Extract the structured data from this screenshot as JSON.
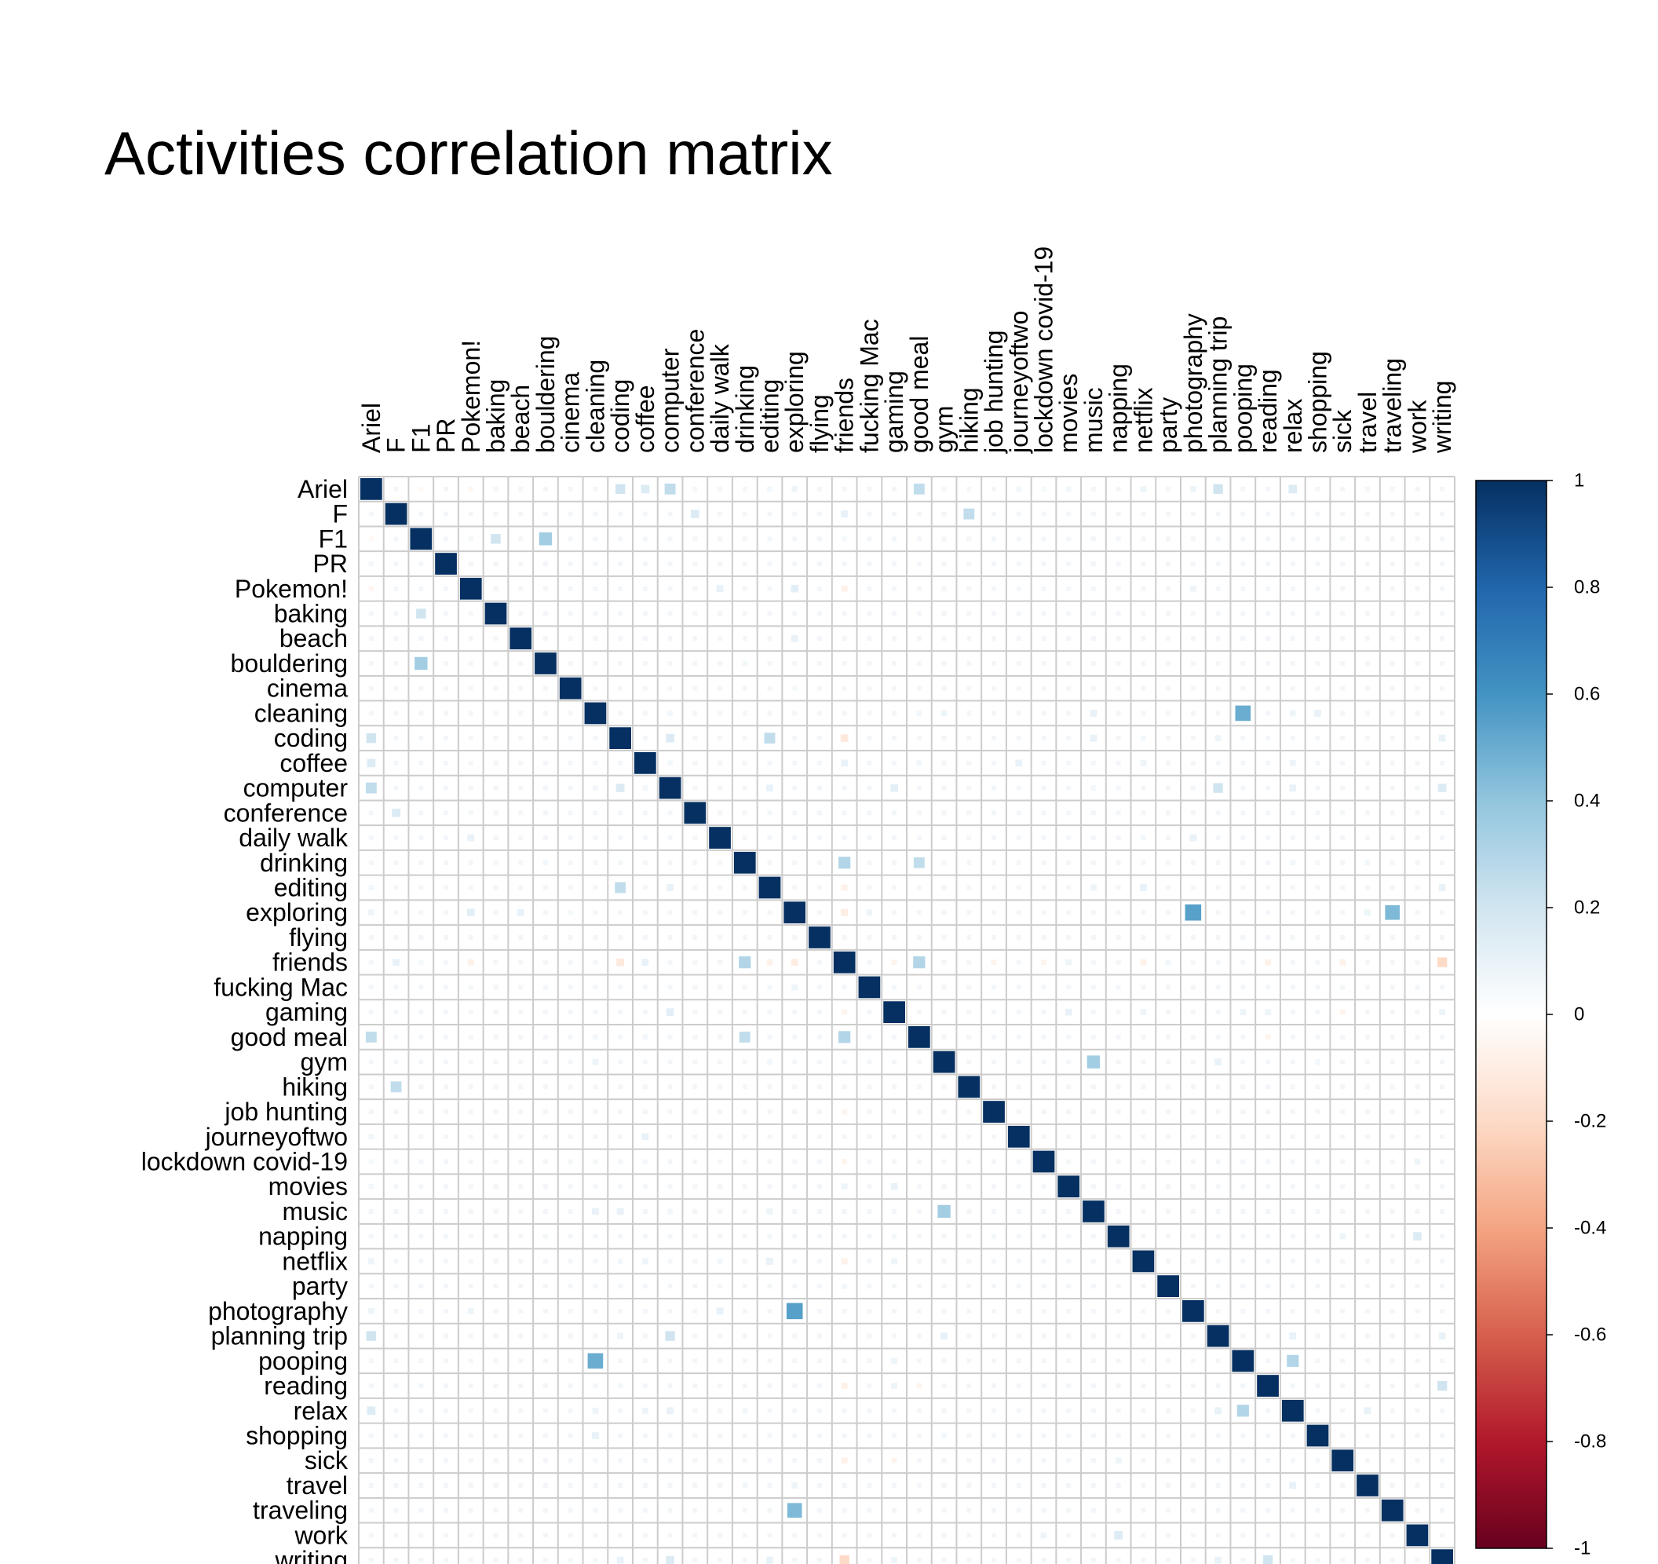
{
  "chart_data": {
    "type": "heatmap",
    "title": "Activities correlation matrix",
    "variables": [
      "Ariel",
      "F",
      "F1",
      "PR",
      "Pokemon!",
      "baking",
      "beach",
      "bouldering",
      "cinema",
      "cleaning",
      "coding",
      "coffee",
      "computer",
      "conference",
      "daily walk",
      "drinking",
      "editing",
      "exploring",
      "flying",
      "friends",
      "fucking Mac",
      "gaming",
      "good meal",
      "gym",
      "hiking",
      "job hunting",
      "journeyoftwo",
      "lockdown covid-19",
      "movies",
      "music",
      "napping",
      "netflix",
      "party",
      "photography",
      "planning trip",
      "pooping",
      "reading",
      "relax",
      "shopping",
      "sick",
      "travel",
      "traveling",
      "work",
      "writing"
    ],
    "value_range": [
      -1,
      1
    ],
    "colorbar_ticks": [
      "1",
      "0.8",
      "0.6",
      "0.4",
      "0.2",
      "0",
      "-0.2",
      "-0.4",
      "-0.6",
      "-0.8",
      "-1"
    ],
    "grid": true,
    "legend": "right",
    "colors": {
      "neg": "#67001F",
      "mid": "#FFFFFF",
      "pos": "#053061",
      "grid": "#cccccc"
    },
    "offdiag_nonzero": [
      [
        "Ariel",
        "coding",
        0.2
      ],
      [
        "Ariel",
        "coffee",
        0.15
      ],
      [
        "Ariel",
        "computer",
        0.25
      ],
      [
        "Ariel",
        "good meal",
        0.25
      ],
      [
        "Ariel",
        "planning trip",
        0.2
      ],
      [
        "Ariel",
        "relax",
        0.15
      ],
      [
        "Ariel",
        "photography",
        0.08
      ],
      [
        "Ariel",
        "netflix",
        0.08
      ],
      [
        "Ariel",
        "movies",
        0.06
      ],
      [
        "Ariel",
        "editing",
        0.06
      ],
      [
        "Ariel",
        "exploring",
        0.08
      ],
      [
        "Ariel",
        "journeyoftwo",
        0.06
      ],
      [
        "Ariel",
        "lockdown covid-19",
        0.05
      ],
      [
        "Ariel",
        "Pokemon!",
        -0.05
      ],
      [
        "Ariel",
        "F1",
        -0.04
      ],
      [
        "F",
        "conference",
        0.15
      ],
      [
        "F",
        "hiking",
        0.25
      ],
      [
        "F",
        "friends",
        0.1
      ],
      [
        "F1",
        "baking",
        0.2
      ],
      [
        "F1",
        "bouldering",
        0.35
      ],
      [
        "F1",
        "friends",
        0.05
      ],
      [
        "Pokemon!",
        "exploring",
        0.12
      ],
      [
        "Pokemon!",
        "photography",
        0.08
      ],
      [
        "Pokemon!",
        "daily walk",
        0.1
      ],
      [
        "Pokemon!",
        "friends",
        -0.08
      ],
      [
        "beach",
        "exploring",
        0.1
      ],
      [
        "bouldering",
        "drinking",
        0.06
      ],
      [
        "cinema",
        "exploring",
        0.05
      ],
      [
        "cleaning",
        "pooping",
        0.5
      ],
      [
        "cleaning",
        "music",
        0.1
      ],
      [
        "cleaning",
        "relax",
        0.08
      ],
      [
        "cleaning",
        "shopping",
        0.1
      ],
      [
        "cleaning",
        "computer",
        0.06
      ],
      [
        "cleaning",
        "gym",
        0.08
      ],
      [
        "cleaning",
        "good meal",
        0.06
      ],
      [
        "coding",
        "editing",
        0.25
      ],
      [
        "coding",
        "computer",
        0.15
      ],
      [
        "coding",
        "music",
        0.1
      ],
      [
        "coding",
        "writing",
        0.1
      ],
      [
        "coding",
        "planning trip",
        0.08
      ],
      [
        "coding",
        "friends",
        -0.12
      ],
      [
        "coding",
        "netflix",
        0.06
      ],
      [
        "coffee",
        "friends",
        0.1
      ],
      [
        "coffee",
        "relax",
        0.08
      ],
      [
        "coffee",
        "journeyoftwo",
        0.1
      ],
      [
        "coffee",
        "netflix",
        0.08
      ],
      [
        "coffee",
        "computer",
        0.06
      ],
      [
        "coffee",
        "good meal",
        0.06
      ],
      [
        "computer",
        "planning trip",
        0.2
      ],
      [
        "computer",
        "gaming",
        0.12
      ],
      [
        "computer",
        "relax",
        0.1
      ],
      [
        "computer",
        "writing",
        0.15
      ],
      [
        "computer",
        "editing",
        0.1
      ],
      [
        "computer",
        "music",
        0.06
      ],
      [
        "daily walk",
        "photography",
        0.1
      ],
      [
        "daily walk",
        "netflix",
        0.06
      ],
      [
        "drinking",
        "friends",
        0.3
      ],
      [
        "drinking",
        "good meal",
        0.25
      ],
      [
        "drinking",
        "relax",
        0.06
      ],
      [
        "drinking",
        "travel",
        0.06
      ],
      [
        "editing",
        "netflix",
        0.1
      ],
      [
        "editing",
        "writing",
        0.1
      ],
      [
        "editing",
        "music",
        0.08
      ],
      [
        "editing",
        "friends",
        -0.08
      ],
      [
        "editing",
        "gym",
        0.06
      ],
      [
        "exploring",
        "photography",
        0.55
      ],
      [
        "exploring",
        "traveling",
        0.45
      ],
      [
        "exploring",
        "friends",
        -0.1
      ],
      [
        "exploring",
        "fucking Mac",
        0.08
      ],
      [
        "exploring",
        "travel",
        0.08
      ],
      [
        "friends",
        "good meal",
        0.3
      ],
      [
        "friends",
        "writing",
        -0.2
      ],
      [
        "friends",
        "job hunting",
        -0.06
      ],
      [
        "friends",
        "netflix",
        -0.08
      ],
      [
        "friends",
        "movies",
        0.08
      ],
      [
        "friends",
        "reading",
        -0.08
      ],
      [
        "friends",
        "sick",
        -0.08
      ],
      [
        "friends",
        "gaming",
        -0.06
      ],
      [
        "friends",
        "lockdown covid-19",
        -0.06
      ],
      [
        "friends",
        "party",
        0.06
      ],
      [
        "gaming",
        "movies",
        0.1
      ],
      [
        "gaming",
        "netflix",
        0.08
      ],
      [
        "gaming",
        "pooping",
        0.08
      ],
      [
        "gaming",
        "reading",
        0.08
      ],
      [
        "gaming",
        "writing",
        0.08
      ],
      [
        "gaming",
        "sick",
        -0.06
      ],
      [
        "good meal",
        "reading",
        -0.06
      ],
      [
        "gym",
        "music",
        0.35
      ],
      [
        "gym",
        "planning trip",
        0.1
      ],
      [
        "gym",
        "shopping",
        0.06
      ],
      [
        "napping",
        "sick",
        0.08
      ],
      [
        "napping",
        "work",
        0.15
      ],
      [
        "planning trip",
        "relax",
        0.1
      ],
      [
        "planning trip",
        "writing",
        0.1
      ],
      [
        "pooping",
        "relax",
        0.3
      ],
      [
        "reading",
        "writing",
        0.2
      ],
      [
        "relax",
        "travel",
        0.1
      ],
      [
        "lockdown covid-19",
        "work",
        0.08
      ]
    ]
  }
}
